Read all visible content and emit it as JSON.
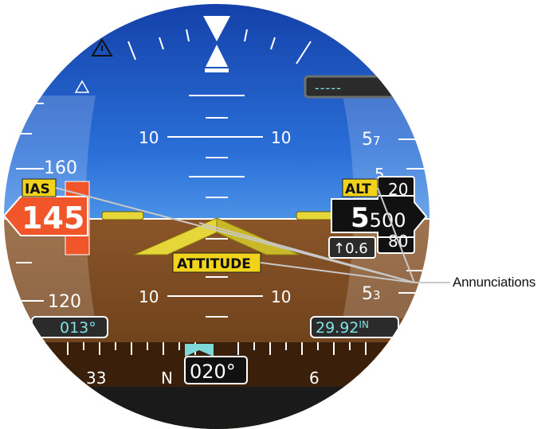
{
  "colors": {
    "sky": "#1f63c8",
    "ground": "#7a4a22",
    "annunciation": "#f2d31b",
    "airspeed_pointer": "#f0562a",
    "tape_tint": "#6b95d8",
    "cyan": "#7fe3e6",
    "aircraft_symbol": "#e6d63a"
  },
  "pitch_ladder": {
    "upper_left": "10",
    "upper_right": "10",
    "lower_left": "10",
    "lower_right": "10"
  },
  "airspeed": {
    "tape_top": "160",
    "tape_bottom": "120",
    "current": "145",
    "annunciation": "IAS",
    "selected_heading": "013°"
  },
  "altitude": {
    "annunciation": "ALT",
    "current_major": "5",
    "current_minor": "500",
    "roll_above": "20",
    "roll_below": "80",
    "tape_upper_major": "5",
    "tape_upper_minor": "7",
    "tape_mid_major": "5",
    "tape_lower_major": "5",
    "tape_lower_minor": "3",
    "vertical_speed": "↑0.6",
    "baro_value": "29.92",
    "baro_unit": "IN",
    "selected_altitude": "-----"
  },
  "attitude": {
    "annunciation": "ATTITUDE"
  },
  "heading": {
    "current": "020°",
    "label_left": "33",
    "label_north": "N",
    "label_right": "6"
  },
  "callout": {
    "label": "Annunciations"
  }
}
